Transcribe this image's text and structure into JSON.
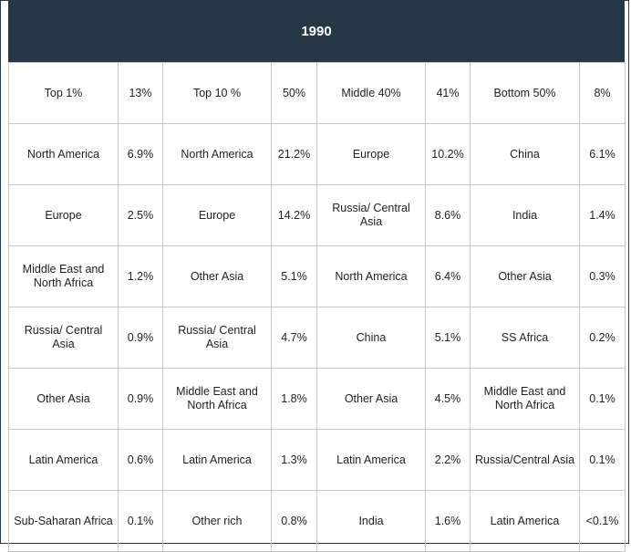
{
  "title": "1990",
  "groups": [
    {
      "header": "Top 1%",
      "share": "13%",
      "rows": [
        {
          "region": "North America",
          "value": "6.9%"
        },
        {
          "region": "Europe",
          "value": "2.5%"
        },
        {
          "region": "Middle East and North Africa",
          "value": "1.2%"
        },
        {
          "region": "Russia/ Central Asia",
          "value": "0.9%"
        },
        {
          "region": "Other Asia",
          "value": "0.9%"
        },
        {
          "region": "Latin America",
          "value": "0.6%"
        },
        {
          "region": "Sub-Saharan Africa",
          "value": "0.1%"
        }
      ]
    },
    {
      "header": "Top 10 %",
      "share": "50%",
      "rows": [
        {
          "region": "North America",
          "value": "21.2%"
        },
        {
          "region": "Europe",
          "value": "14.2%"
        },
        {
          "region": "Other Asia",
          "value": "5.1%"
        },
        {
          "region": "Russia/ Central Asia",
          "value": "4.7%"
        },
        {
          "region": "Middle East and North Africa",
          "value": "1.8%"
        },
        {
          "region": "Latin America",
          "value": "1.3%"
        },
        {
          "region": "Other rich",
          "value": "0.8%"
        }
      ]
    },
    {
      "header": "Middle 40%",
      "share": "41%",
      "rows": [
        {
          "region": "Europe",
          "value": "10.2%"
        },
        {
          "region": "Russia/ Central Asia",
          "value": "8.6%"
        },
        {
          "region": "North America",
          "value": "6.4%"
        },
        {
          "region": "China",
          "value": "5.1%"
        },
        {
          "region": "Other Asia",
          "value": "4.5%"
        },
        {
          "region": "Latin America",
          "value": "2.2%"
        },
        {
          "region": "India",
          "value": "1.6%"
        }
      ]
    },
    {
      "header": "Bottom 50%",
      "share": "8%",
      "rows": [
        {
          "region": "China",
          "value": "6.1%"
        },
        {
          "region": "India",
          "value": "1.4%"
        },
        {
          "region": "Other Asia",
          "value": "0.3%"
        },
        {
          "region": "SS Africa",
          "value": "0.2%"
        },
        {
          "region": "Middle East and North Africa",
          "value": "0.1%"
        },
        {
          "region": "Russia/Central Asia",
          "value": "0.1%"
        },
        {
          "region": "Latin America",
          "value": "<0.1%"
        }
      ]
    }
  ]
}
